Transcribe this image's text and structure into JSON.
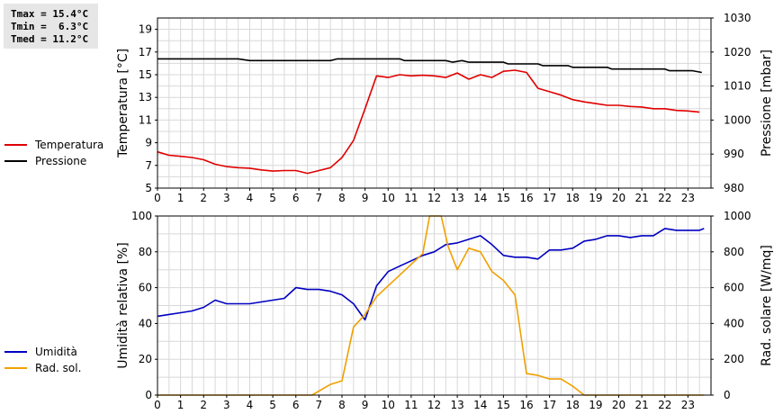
{
  "stats": {
    "tmax": "Tmax = 15.4°C",
    "tmin": "Tmin =  6.3°C",
    "tmed": "Tmed = 11.2°C"
  },
  "legend_top": [
    {
      "label": "Temperatura",
      "color": "#e00000"
    },
    {
      "label": "Pressione",
      "color": "#000000"
    }
  ],
  "legend_bottom": [
    {
      "label": "Umidità",
      "color": "#0000c0"
    },
    {
      "label": "Rad. sol.",
      "color": "#f0a000"
    }
  ],
  "chart_data": [
    {
      "type": "line",
      "ylabel": "Temperatura [°C]",
      "y2label": "Pressione [mbar]",
      "xlim": [
        0,
        24
      ],
      "ylim": [
        5,
        20
      ],
      "y2lim": [
        980,
        1030
      ],
      "x_ticks": [
        "0",
        "1",
        "2",
        "3",
        "4",
        "5",
        "6",
        "7",
        "8",
        "9",
        "10",
        "11",
        "12",
        "13",
        "14",
        "15",
        "16",
        "17",
        "18",
        "19",
        "20",
        "21",
        "22",
        "23"
      ],
      "y_ticks": [
        "5",
        "7",
        "9",
        "11",
        "13",
        "15",
        "17",
        "19"
      ],
      "y2_ticks": [
        "980",
        "990",
        "1000",
        "1010",
        "1020",
        "1030"
      ],
      "grid": true,
      "series": [
        {
          "name": "Temperatura",
          "axis": "left",
          "color": "#e00000",
          "points": [
            [
              0,
              8.2
            ],
            [
              0.5,
              7.9
            ],
            [
              1,
              7.8
            ],
            [
              1.5,
              7.7
            ],
            [
              2,
              7.5
            ],
            [
              2.5,
              7.1
            ],
            [
              3,
              6.9
            ],
            [
              3.5,
              6.8
            ],
            [
              4,
              6.75
            ],
            [
              4.5,
              6.6
            ],
            [
              5,
              6.5
            ],
            [
              5.5,
              6.55
            ],
            [
              6,
              6.55
            ],
            [
              6.5,
              6.3
            ],
            [
              7,
              6.55
            ],
            [
              7.5,
              6.8
            ],
            [
              8,
              7.7
            ],
            [
              8.5,
              9.2
            ],
            [
              9,
              12.0
            ],
            [
              9.5,
              14.9
            ],
            [
              10,
              14.75
            ],
            [
              10.5,
              15.0
            ],
            [
              11,
              14.9
            ],
            [
              11.5,
              14.95
            ],
            [
              12,
              14.9
            ],
            [
              12.5,
              14.75
            ],
            [
              13,
              15.15
            ],
            [
              13.5,
              14.6
            ],
            [
              14,
              15.0
            ],
            [
              14.5,
              14.75
            ],
            [
              15,
              15.3
            ],
            [
              15.5,
              15.4
            ],
            [
              16,
              15.2
            ],
            [
              16.5,
              13.8
            ],
            [
              17,
              13.5
            ],
            [
              17.5,
              13.2
            ],
            [
              18,
              12.8
            ],
            [
              18.5,
              12.6
            ],
            [
              19,
              12.45
            ],
            [
              19.5,
              12.3
            ],
            [
              20,
              12.3
            ],
            [
              20.5,
              12.2
            ],
            [
              21,
              12.15
            ],
            [
              21.5,
              12.0
            ],
            [
              22,
              12.0
            ],
            [
              22.5,
              11.85
            ],
            [
              23,
              11.8
            ],
            [
              23.5,
              11.7
            ]
          ]
        },
        {
          "name": "Pressione",
          "axis": "right",
          "color": "#000000",
          "points": [
            [
              0,
              1018
            ],
            [
              3.5,
              1018
            ],
            [
              4,
              1017.5
            ],
            [
              7.5,
              1017.5
            ],
            [
              7.8,
              1018
            ],
            [
              10.5,
              1018
            ],
            [
              10.7,
              1017.5
            ],
            [
              12.5,
              1017.5
            ],
            [
              12.8,
              1017
            ],
            [
              13.2,
              1017.5
            ],
            [
              13.5,
              1017
            ],
            [
              15,
              1017
            ],
            [
              15.2,
              1016.5
            ],
            [
              16.5,
              1016.5
            ],
            [
              16.7,
              1016
            ],
            [
              17.8,
              1016
            ],
            [
              18,
              1015.5
            ],
            [
              19.5,
              1015.5
            ],
            [
              19.7,
              1015
            ],
            [
              22,
              1015
            ],
            [
              22.2,
              1014.5
            ],
            [
              23.2,
              1014.5
            ],
            [
              23.6,
              1014
            ]
          ]
        }
      ]
    },
    {
      "type": "line",
      "ylabel": "Umidità relativa [%]",
      "y2label": "Rad. solare [W/mq]",
      "xlim": [
        0,
        24
      ],
      "ylim": [
        0,
        100
      ],
      "y2lim": [
        0,
        1000
      ],
      "x_ticks": [
        "0",
        "1",
        "2",
        "3",
        "4",
        "5",
        "6",
        "7",
        "8",
        "9",
        "10",
        "11",
        "12",
        "13",
        "14",
        "15",
        "16",
        "17",
        "18",
        "19",
        "20",
        "21",
        "22",
        "23"
      ],
      "y_ticks": [
        "0",
        "20",
        "40",
        "60",
        "80",
        "100"
      ],
      "y2_ticks": [
        "0",
        "200",
        "400",
        "600",
        "800",
        "1000"
      ],
      "grid": true,
      "series": [
        {
          "name": "Umidità",
          "axis": "left",
          "color": "#0000c0",
          "points": [
            [
              0,
              44
            ],
            [
              0.5,
              45
            ],
            [
              1,
              46
            ],
            [
              1.5,
              47
            ],
            [
              2,
              49
            ],
            [
              2.5,
              53
            ],
            [
              3,
              51
            ],
            [
              3.5,
              51
            ],
            [
              4,
              51
            ],
            [
              4.5,
              52
            ],
            [
              5,
              53
            ],
            [
              5.5,
              54
            ],
            [
              6,
              60
            ],
            [
              6.5,
              59
            ],
            [
              7,
              59
            ],
            [
              7.5,
              58
            ],
            [
              8,
              56
            ],
            [
              8.5,
              51
            ],
            [
              9,
              42
            ],
            [
              9.5,
              61
            ],
            [
              10,
              69
            ],
            [
              10.5,
              72
            ],
            [
              11,
              75
            ],
            [
              11.5,
              78
            ],
            [
              12,
              80
            ],
            [
              12.5,
              84
            ],
            [
              13,
              85
            ],
            [
              13.5,
              87
            ],
            [
              14,
              89
            ],
            [
              14.5,
              84
            ],
            [
              15,
              78
            ],
            [
              15.5,
              77
            ],
            [
              16,
              77
            ],
            [
              16.5,
              76
            ],
            [
              17,
              81
            ],
            [
              17.5,
              81
            ],
            [
              18,
              82
            ],
            [
              18.5,
              86
            ],
            [
              19,
              87
            ],
            [
              19.5,
              89
            ],
            [
              20,
              89
            ],
            [
              20.5,
              88
            ],
            [
              21,
              89
            ],
            [
              21.5,
              89
            ],
            [
              22,
              93
            ],
            [
              22.5,
              92
            ],
            [
              23,
              92
            ],
            [
              23.5,
              92
            ],
            [
              23.7,
              93
            ]
          ]
        },
        {
          "name": "Rad. sol.",
          "axis": "right",
          "color": "#f0a000",
          "points": [
            [
              0,
              0
            ],
            [
              6.7,
              0
            ],
            [
              7.5,
              60
            ],
            [
              8,
              80
            ],
            [
              8.5,
              380
            ],
            [
              9,
              450
            ],
            [
              9.5,
              550
            ],
            [
              10,
              610
            ],
            [
              10.5,
              670
            ],
            [
              11,
              730
            ],
            [
              11.5,
              790
            ],
            [
              11.8,
              1000
            ],
            [
              12.3,
              1000
            ],
            [
              12.6,
              830
            ],
            [
              13,
              700
            ],
            [
              13.5,
              820
            ],
            [
              14,
              800
            ],
            [
              14.5,
              690
            ],
            [
              15,
              640
            ],
            [
              15.5,
              560
            ],
            [
              16,
              120
            ],
            [
              16.5,
              110
            ],
            [
              17,
              90
            ],
            [
              17.5,
              90
            ],
            [
              18,
              50
            ],
            [
              18.5,
              0
            ],
            [
              23.7,
              0
            ]
          ]
        }
      ]
    }
  ]
}
